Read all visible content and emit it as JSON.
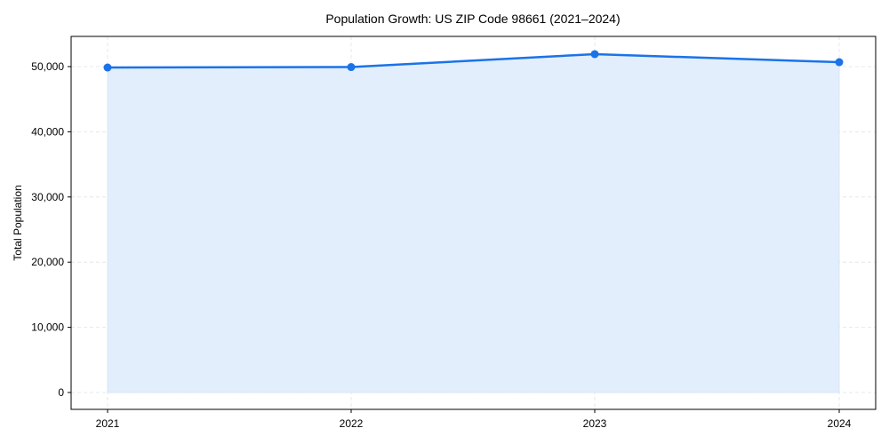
{
  "chart_data": {
    "type": "line",
    "title": "Population Growth: US ZIP Code 98661 (2021–2024)",
    "xlabel": "",
    "ylabel": "Total Population",
    "categories": [
      "2021",
      "2022",
      "2023",
      "2024"
    ],
    "series": [
      {
        "name": "Total Population",
        "values": [
          49860,
          49930,
          51910,
          50680
        ],
        "color": "#1a73e8",
        "fill": "#e3eefd"
      }
    ],
    "ylim": [
      -2700,
      54700
    ],
    "yticks": [
      0,
      10000,
      20000,
      30000,
      40000,
      50000
    ],
    "ytick_labels": [
      "0",
      "10,000",
      "20,000",
      "30,000",
      "40,000",
      "50,000"
    ],
    "grid": true,
    "legend": "none",
    "area_fill": true,
    "markers": true
  }
}
